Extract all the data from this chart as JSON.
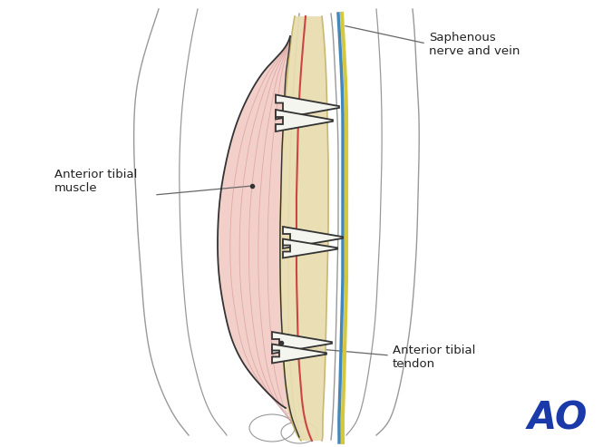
{
  "bg_color": "#ffffff",
  "line_color": "#999999",
  "dark_line": "#333333",
  "muscle_fill": "#f0c0b8",
  "tendon_fill": "#e8ddb0",
  "tendon_outline": "#c8b870",
  "nerve_yellow": "#d4c840",
  "nerve_blue": "#4488bb",
  "nerve_red": "#cc4444",
  "ao_blue": "#1a3aaa",
  "ann_color": "#666666",
  "labels": {
    "saphenous": "Saphenous\nnerve and vein",
    "muscle": "Anterior tibial\nmuscle",
    "tendon": "Anterior tibial\ntendon"
  },
  "ao_text": "AO",
  "figsize": [
    6.65,
    4.93
  ],
  "dpi": 100
}
